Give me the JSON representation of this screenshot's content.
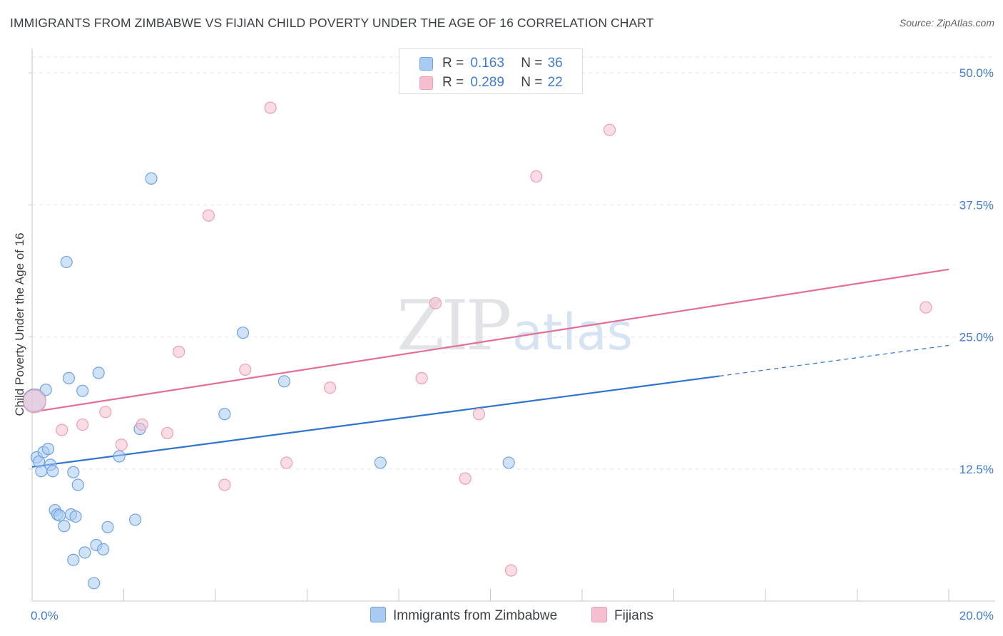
{
  "title": "IMMIGRANTS FROM ZIMBABWE VS FIJIAN CHILD POVERTY UNDER THE AGE OF 16 CORRELATION CHART",
  "source": "Source: ZipAtlas.com",
  "watermark": {
    "zip": "ZIP",
    "atlas": "atlas"
  },
  "legend": {
    "items": [
      {
        "r_label": "R =",
        "r_value": "0.163",
        "n_label": "N =",
        "n_value": "36"
      },
      {
        "r_label": "R =",
        "r_value": "0.289",
        "n_label": "N =",
        "n_value": "22"
      }
    ]
  },
  "bottom_legend": [
    "Immigrants from Zimbabwe",
    "Fijians"
  ],
  "chart_data": {
    "type": "scatter",
    "title": "IMMIGRANTS FROM ZIMBABWE VS FIJIAN CHILD POVERTY UNDER THE AGE OF 16 CORRELATION CHART",
    "xlabel": "",
    "ylabel": "Child Poverty Under the Age of 16",
    "xlim": [
      0,
      20
    ],
    "ylim": [
      0,
      51.5
    ],
    "x_tick_labels": [
      {
        "value": 0,
        "label": "0.0%"
      },
      {
        "value": 20,
        "label": "20.0%"
      }
    ],
    "x_minor_ticks": [
      2,
      4,
      6,
      8,
      10,
      12,
      14,
      16,
      18,
      20
    ],
    "y_ticks": [
      {
        "value": 12.5,
        "label": "12.5%"
      },
      {
        "value": 25,
        "label": "25.0%"
      },
      {
        "value": 37.5,
        "label": "37.5%"
      },
      {
        "value": 50,
        "label": "50.0%"
      }
    ],
    "colors": {
      "zimbabwe_fill": "#a9cbf2",
      "zimbabwe_stroke": "#6fa2e0",
      "zimbabwe_line": "#2f74d0",
      "fijians_fill": "#f6bfcf",
      "fijians_stroke": "#ec9fb5",
      "fijians_line": "#e36f95",
      "grid": "#e3e5e8",
      "axis": "#c4c7cb"
    },
    "series": [
      {
        "name": "Immigrants from Zimbabwe",
        "r": 0.163,
        "n": 36,
        "trend": {
          "x0": 0,
          "y0": 12.7,
          "x1": 15.0,
          "y1": 21.3,
          "dash_to_x": 20,
          "dash_to_y": 24.2
        },
        "points": [
          {
            "x": 0.05,
            "y": 19.0,
            "size": "large"
          },
          {
            "x": 0.1,
            "y": 13.6
          },
          {
            "x": 0.15,
            "y": 13.2
          },
          {
            "x": 0.2,
            "y": 12.3
          },
          {
            "x": 0.25,
            "y": 14.1
          },
          {
            "x": 0.3,
            "y": 20.0
          },
          {
            "x": 0.35,
            "y": 14.4
          },
          {
            "x": 0.4,
            "y": 12.9
          },
          {
            "x": 0.45,
            "y": 12.3
          },
          {
            "x": 0.5,
            "y": 8.6
          },
          {
            "x": 0.55,
            "y": 8.2
          },
          {
            "x": 0.6,
            "y": 8.1
          },
          {
            "x": 0.7,
            "y": 7.1
          },
          {
            "x": 0.75,
            "y": 32.1
          },
          {
            "x": 0.8,
            "y": 21.1
          },
          {
            "x": 0.85,
            "y": 8.2
          },
          {
            "x": 0.9,
            "y": 12.2
          },
          {
            "x": 0.9,
            "y": 3.9
          },
          {
            "x": 0.95,
            "y": 8.0
          },
          {
            "x": 1.0,
            "y": 11.0
          },
          {
            "x": 1.1,
            "y": 19.9
          },
          {
            "x": 1.15,
            "y": 4.6
          },
          {
            "x": 1.35,
            "y": 1.7
          },
          {
            "x": 1.4,
            "y": 5.3
          },
          {
            "x": 1.45,
            "y": 21.6
          },
          {
            "x": 1.55,
            "y": 4.9
          },
          {
            "x": 1.65,
            "y": 7.0
          },
          {
            "x": 1.9,
            "y": 13.7
          },
          {
            "x": 2.25,
            "y": 7.7
          },
          {
            "x": 2.35,
            "y": 16.3
          },
          {
            "x": 2.6,
            "y": 40.0
          },
          {
            "x": 4.2,
            "y": 17.7
          },
          {
            "x": 4.6,
            "y": 25.4
          },
          {
            "x": 5.5,
            "y": 20.8
          },
          {
            "x": 7.6,
            "y": 13.1
          },
          {
            "x": 10.4,
            "y": 13.1
          }
        ]
      },
      {
        "name": "Fijians",
        "r": 0.289,
        "n": 22,
        "trend": {
          "x0": 0,
          "y0": 17.9,
          "x1": 20,
          "y1": 31.4
        },
        "points": [
          {
            "x": 0.05,
            "y": 18.9,
            "size": "large"
          },
          {
            "x": 0.65,
            "y": 16.2
          },
          {
            "x": 1.1,
            "y": 16.7
          },
          {
            "x": 1.6,
            "y": 17.9
          },
          {
            "x": 1.95,
            "y": 14.8
          },
          {
            "x": 2.4,
            "y": 16.7
          },
          {
            "x": 2.95,
            "y": 15.9
          },
          {
            "x": 3.2,
            "y": 23.6
          },
          {
            "x": 3.85,
            "y": 36.5
          },
          {
            "x": 4.2,
            "y": 11.0
          },
          {
            "x": 4.65,
            "y": 21.9
          },
          {
            "x": 5.2,
            "y": 46.7
          },
          {
            "x": 5.55,
            "y": 13.1
          },
          {
            "x": 6.5,
            "y": 20.2
          },
          {
            "x": 8.5,
            "y": 21.1
          },
          {
            "x": 8.8,
            "y": 28.2
          },
          {
            "x": 9.45,
            "y": 11.6
          },
          {
            "x": 9.75,
            "y": 17.7
          },
          {
            "x": 10.45,
            "y": 2.9
          },
          {
            "x": 11.0,
            "y": 40.2
          },
          {
            "x": 12.6,
            "y": 44.6
          },
          {
            "x": 19.5,
            "y": 27.8
          }
        ]
      }
    ]
  }
}
